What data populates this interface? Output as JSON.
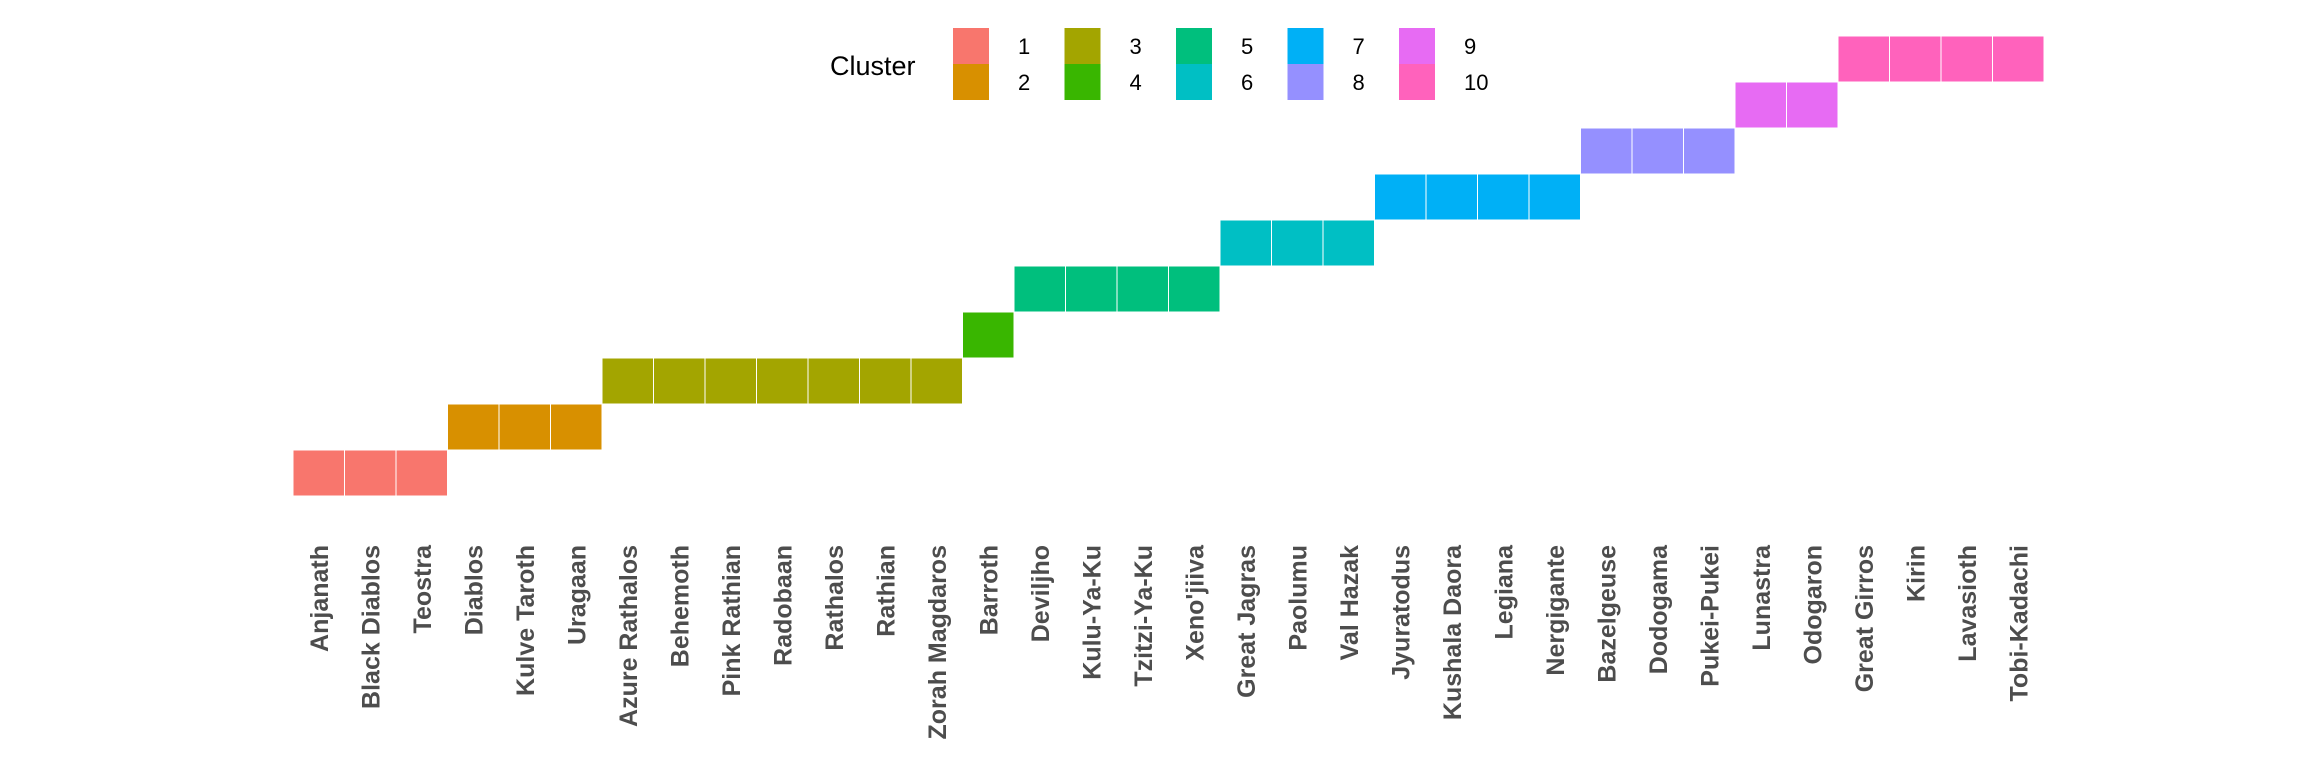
{
  "chart_data": {
    "type": "heatmap",
    "legend": {
      "title": "Cluster",
      "position": "top",
      "entries": [
        {
          "label": "1",
          "color": "#F8766D"
        },
        {
          "label": "2",
          "color": "#D89000"
        },
        {
          "label": "3",
          "color": "#A3A500"
        },
        {
          "label": "4",
          "color": "#39B600"
        },
        {
          "label": "5",
          "color": "#00BF7D"
        },
        {
          "label": "6",
          "color": "#00BFC4"
        },
        {
          "label": "7",
          "color": "#00B0F6"
        },
        {
          "label": "8",
          "color": "#9590FF"
        },
        {
          "label": "9",
          "color": "#E76BF3"
        },
        {
          "label": "10",
          "color": "#FF62BC"
        }
      ]
    },
    "categories": [
      "Anjanath",
      "Black Diablos",
      "Teostra",
      "Diablos",
      "Kulve Taroth",
      "Uragaan",
      "Azure Rathalos",
      "Behemoth",
      "Pink Rathian",
      "Radobaan",
      "Rathalos",
      "Rathian",
      "Zorah Magdaros",
      "Barroth",
      "Deviljho",
      "Kulu-Ya-Ku",
      "Tzitzi-Ya-Ku",
      "Xeno'jiiva",
      "Great Jagras",
      "Paolumu",
      "Val Hazak",
      "Jyuratodus",
      "Kushala Daora",
      "Legiana",
      "Nergigante",
      "Bazelgeuse",
      "Dodogama",
      "Pukei-Pukei",
      "Lunastra",
      "Odogaron",
      "Great Girros",
      "Kirin",
      "Lavasioth",
      "Tobi-Kadachi"
    ],
    "cluster": [
      1,
      1,
      1,
      2,
      2,
      2,
      3,
      3,
      3,
      3,
      3,
      3,
      3,
      4,
      5,
      5,
      5,
      5,
      6,
      6,
      6,
      7,
      7,
      7,
      7,
      8,
      8,
      8,
      9,
      9,
      10,
      10,
      10,
      10
    ],
    "grid": false
  }
}
